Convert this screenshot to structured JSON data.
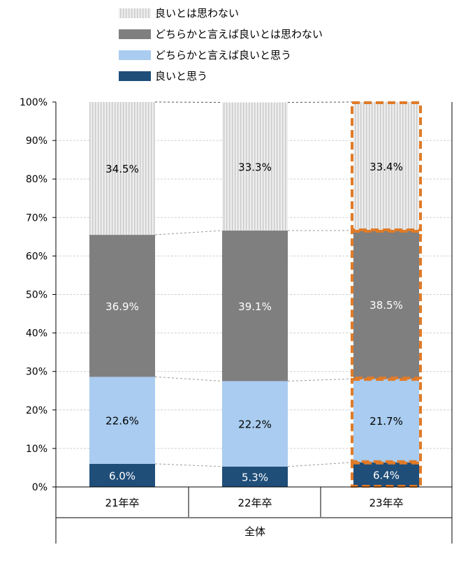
{
  "chart_data": {
    "type": "bar",
    "stacked": true,
    "percent_scale": true,
    "categories": [
      "21年卒",
      "22年卒",
      "23年卒"
    ],
    "group_label": "全体",
    "series": [
      {
        "name": "良いと思う",
        "values": [
          6.0,
          5.3,
          6.4
        ],
        "labels": [
          "6.0%",
          "5.3%",
          "6.4%"
        ],
        "color": "#1f4e79",
        "pattern": "solid",
        "label_color": "#ffffff"
      },
      {
        "name": "どちらかと言えば良いと思う",
        "values": [
          22.6,
          22.2,
          21.7
        ],
        "labels": [
          "22.6%",
          "22.2%",
          "21.7%"
        ],
        "color": "#a9ccf0",
        "pattern": "solid",
        "label_color": "#000000"
      },
      {
        "name": "どちらかと言えば良いとは思わない",
        "values": [
          36.9,
          39.1,
          38.5
        ],
        "labels": [
          "36.9%",
          "39.1%",
          "38.5%"
        ],
        "color": "#7f7f7f",
        "pattern": "solid",
        "label_color": "#ffffff"
      },
      {
        "name": "良いとは思わない",
        "values": [
          34.5,
          33.3,
          33.4
        ],
        "labels": [
          "34.5%",
          "33.3%",
          "33.4%"
        ],
        "color": "#d9d9d9",
        "pattern": "vertical-stripes",
        "label_color": "#000000"
      }
    ],
    "legend_order": [
      "良いとは思わない",
      "どちらかと言えば良いとは思わない",
      "どちらかと言えば良いと思う",
      "良いと思う"
    ],
    "legend_position": "top",
    "y_ticks": [
      "0%",
      "10%",
      "20%",
      "30%",
      "40%",
      "50%",
      "60%",
      "70%",
      "80%",
      "90%",
      "100%"
    ],
    "ylim": [
      0,
      100
    ],
    "grid": true,
    "series_lines": true,
    "highlight_category": "23年卒",
    "highlight_color": "#e07b28",
    "title": "",
    "xlabel": "",
    "ylabel": ""
  }
}
